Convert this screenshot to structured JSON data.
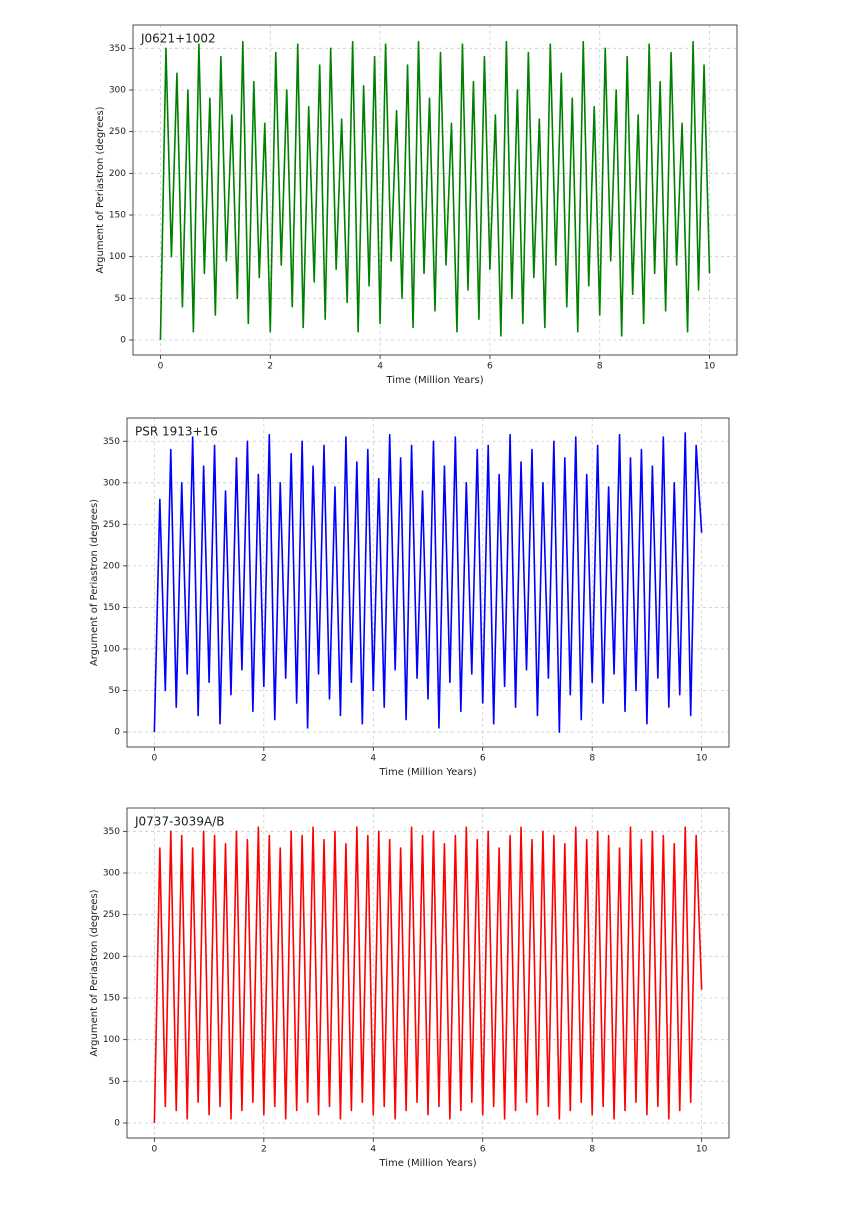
{
  "chart_data": [
    {
      "type": "line",
      "title": "J0621+1002",
      "xlabel": "Time (Million Years)",
      "ylabel": "Argument of Periastron (degrees)",
      "xlim": [
        -0.5,
        10.5
      ],
      "ylim": [
        -18,
        378
      ],
      "xticks": [
        0,
        2,
        4,
        6,
        8,
        10
      ],
      "yticks": [
        0,
        50,
        100,
        150,
        200,
        250,
        300,
        350
      ],
      "grid": true,
      "x": [
        0,
        0.1,
        0.2,
        0.3,
        0.4,
        0.5,
        0.6,
        0.7,
        0.8,
        0.9,
        1,
        1.1,
        1.2,
        1.3,
        1.4,
        1.5,
        1.6,
        1.7,
        1.8,
        1.9,
        2,
        2.1,
        2.2,
        2.3,
        2.4,
        2.5,
        2.6,
        2.7,
        2.8,
        2.9,
        3,
        3.1,
        3.2,
        3.3,
        3.4,
        3.5,
        3.6,
        3.7,
        3.8,
        3.9,
        4,
        4.1,
        4.2,
        4.3,
        4.4,
        4.5,
        4.6,
        4.7,
        4.8,
        4.9,
        5,
        5.1,
        5.2,
        5.3,
        5.4,
        5.5,
        5.6,
        5.7,
        5.8,
        5.9,
        6,
        6.1,
        6.2,
        6.3,
        6.4,
        6.5,
        6.6,
        6.7,
        6.8,
        6.9,
        7,
        7.1,
        7.2,
        7.3,
        7.4,
        7.5,
        7.6,
        7.7,
        7.8,
        7.9,
        8,
        8.1,
        8.2,
        8.3,
        8.4,
        8.5,
        8.6,
        8.7,
        8.8,
        8.9,
        9,
        9.1,
        9.2,
        9.3,
        9.4,
        9.5,
        9.6,
        9.7,
        9.8,
        9.9,
        10
      ],
      "series": [
        {
          "color": "#008000",
          "values": [
            0,
            350,
            100,
            320,
            40,
            300,
            10,
            355,
            80,
            290,
            30,
            340,
            95,
            270,
            50,
            358,
            20,
            310,
            75,
            260,
            10,
            345,
            90,
            300,
            40,
            355,
            15,
            280,
            70,
            330,
            25,
            350,
            85,
            265,
            45,
            358,
            10,
            305,
            65,
            340,
            20,
            355,
            95,
            275,
            50,
            330,
            15,
            358,
            80,
            290,
            35,
            345,
            90,
            260,
            10,
            355,
            60,
            310,
            25,
            340,
            85,
            270,
            5,
            358,
            50,
            300,
            20,
            345,
            75,
            265,
            15,
            355,
            90,
            320,
            40,
            290,
            10,
            358,
            65,
            280,
            30,
            350,
            95,
            300,
            5,
            340,
            55,
            270,
            20,
            355,
            80,
            310,
            35,
            345,
            90,
            260,
            10,
            358,
            60,
            330,
            80
          ]
        }
      ]
    },
    {
      "type": "line",
      "title": "PSR 1913+16",
      "xlabel": "Time (Million Years)",
      "ylabel": "Argument of Periastron (degrees)",
      "xlim": [
        -0.5,
        10.5
      ],
      "ylim": [
        -18,
        378
      ],
      "xticks": [
        0,
        2,
        4,
        6,
        8,
        10
      ],
      "yticks": [
        0,
        50,
        100,
        150,
        200,
        250,
        300,
        350
      ],
      "grid": true,
      "x": [
        0,
        0.1,
        0.2,
        0.3,
        0.4,
        0.5,
        0.6,
        0.7,
        0.8,
        0.9,
        1,
        1.1,
        1.2,
        1.3,
        1.4,
        1.5,
        1.6,
        1.7,
        1.8,
        1.9,
        2,
        2.1,
        2.2,
        2.3,
        2.4,
        2.5,
        2.6,
        2.7,
        2.8,
        2.9,
        3,
        3.1,
        3.2,
        3.3,
        3.4,
        3.5,
        3.6,
        3.7,
        3.8,
        3.9,
        4,
        4.1,
        4.2,
        4.3,
        4.4,
        4.5,
        4.6,
        4.7,
        4.8,
        4.9,
        5,
        5.1,
        5.2,
        5.3,
        5.4,
        5.5,
        5.6,
        5.7,
        5.8,
        5.9,
        6,
        6.1,
        6.2,
        6.3,
        6.4,
        6.5,
        6.6,
        6.7,
        6.8,
        6.9,
        7,
        7.1,
        7.2,
        7.3,
        7.4,
        7.5,
        7.6,
        7.7,
        7.8,
        7.9,
        8,
        8.1,
        8.2,
        8.3,
        8.4,
        8.5,
        8.6,
        8.7,
        8.8,
        8.9,
        9,
        9.1,
        9.2,
        9.3,
        9.4,
        9.5,
        9.6,
        9.7,
        9.8,
        9.9,
        10
      ],
      "series": [
        {
          "color": "#0000ff",
          "values": [
            0,
            280,
            50,
            340,
            30,
            300,
            70,
            355,
            20,
            320,
            60,
            345,
            10,
            290,
            45,
            330,
            75,
            350,
            25,
            310,
            55,
            358,
            15,
            300,
            65,
            335,
            35,
            350,
            5,
            320,
            70,
            345,
            40,
            295,
            20,
            355,
            60,
            325,
            10,
            340,
            50,
            305,
            30,
            358,
            75,
            330,
            15,
            345,
            65,
            290,
            40,
            350,
            5,
            320,
            60,
            355,
            25,
            300,
            70,
            340,
            35,
            345,
            10,
            310,
            55,
            358,
            30,
            325,
            75,
            340,
            20,
            300,
            65,
            350,
            0,
            330,
            45,
            355,
            15,
            310,
            60,
            345,
            35,
            295,
            70,
            358,
            25,
            330,
            50,
            340,
            10,
            320,
            65,
            355,
            30,
            300,
            45,
            360,
            20,
            345,
            240
          ]
        }
      ]
    },
    {
      "type": "line",
      "title": "J0737-3039A/B",
      "xlabel": "Time (Million Years)",
      "ylabel": "Argument of Periastron (degrees)",
      "xlim": [
        -0.5,
        10.5
      ],
      "ylim": [
        -18,
        378
      ],
      "xticks": [
        0,
        2,
        4,
        6,
        8,
        10
      ],
      "yticks": [
        0,
        50,
        100,
        150,
        200,
        250,
        300,
        350
      ],
      "grid": true,
      "x": [
        0,
        0.1,
        0.2,
        0.3,
        0.4,
        0.5,
        0.6,
        0.7,
        0.8,
        0.9,
        1,
        1.1,
        1.2,
        1.3,
        1.4,
        1.5,
        1.6,
        1.7,
        1.8,
        1.9,
        2,
        2.1,
        2.2,
        2.3,
        2.4,
        2.5,
        2.6,
        2.7,
        2.8,
        2.9,
        3,
        3.1,
        3.2,
        3.3,
        3.4,
        3.5,
        3.6,
        3.7,
        3.8,
        3.9,
        4,
        4.1,
        4.2,
        4.3,
        4.4,
        4.5,
        4.6,
        4.7,
        4.8,
        4.9,
        5,
        5.1,
        5.2,
        5.3,
        5.4,
        5.5,
        5.6,
        5.7,
        5.8,
        5.9,
        6,
        6.1,
        6.2,
        6.3,
        6.4,
        6.5,
        6.6,
        6.7,
        6.8,
        6.9,
        7,
        7.1,
        7.2,
        7.3,
        7.4,
        7.5,
        7.6,
        7.7,
        7.8,
        7.9,
        8,
        8.1,
        8.2,
        8.3,
        8.4,
        8.5,
        8.6,
        8.7,
        8.8,
        8.9,
        9,
        9.1,
        9.2,
        9.3,
        9.4,
        9.5,
        9.6,
        9.7,
        9.8,
        9.9,
        10
      ],
      "series": [
        {
          "color": "#ff0000",
          "values": [
            0,
            330,
            20,
            350,
            15,
            345,
            5,
            330,
            25,
            350,
            10,
            345,
            20,
            335,
            5,
            350,
            15,
            340,
            25,
            355,
            10,
            345,
            20,
            330,
            5,
            350,
            15,
            345,
            25,
            355,
            10,
            340,
            20,
            350,
            5,
            335,
            15,
            355,
            25,
            345,
            10,
            350,
            20,
            340,
            5,
            330,
            15,
            355,
            25,
            345,
            10,
            350,
            20,
            335,
            5,
            345,
            15,
            355,
            25,
            340,
            10,
            350,
            20,
            330,
            5,
            345,
            15,
            355,
            25,
            340,
            10,
            350,
            20,
            345,
            5,
            335,
            15,
            355,
            25,
            340,
            10,
            350,
            20,
            345,
            5,
            330,
            15,
            355,
            25,
            340,
            10,
            350,
            20,
            345,
            5,
            335,
            15,
            355,
            25,
            345,
            160
          ]
        }
      ]
    }
  ]
}
